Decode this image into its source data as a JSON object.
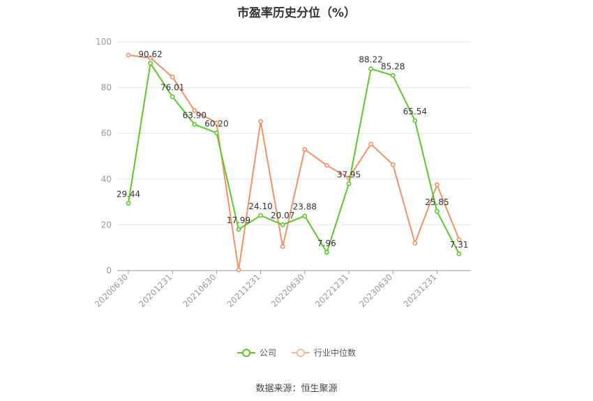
{
  "chart_data": {
    "type": "line",
    "title": "市盈率历史分位（%）",
    "x": [
      "20200630",
      "20200930",
      "20201231",
      "20210331",
      "20210630",
      "20210930",
      "20211231",
      "20220331",
      "20220630",
      "20220930",
      "20221231",
      "20230331",
      "20230630",
      "20230930",
      "20231231",
      "20240331"
    ],
    "x_tick_labels": [
      "20200630",
      "20201231",
      "20210630",
      "20211231",
      "20220630",
      "20221231",
      "20230630",
      "20231231"
    ],
    "y_ticks": [
      0,
      20,
      40,
      60,
      80,
      100
    ],
    "ylim": [
      0,
      100
    ],
    "grid": true,
    "legend_position": "bottom",
    "series": [
      {
        "name": "公司",
        "color": "#5cc72c",
        "values": [
          29.44,
          90.62,
          76.01,
          63.9,
          60.2,
          17.99,
          24.1,
          20.07,
          23.88,
          7.96,
          37.95,
          88.22,
          85.28,
          65.54,
          25.85,
          7.31
        ],
        "labels": [
          "29.44",
          "90.62",
          "76.01",
          "63.90",
          "60.20",
          "17.99",
          "24.10",
          "20.07",
          "23.88",
          "7.96",
          "37.95",
          "88.22",
          "85.28",
          "65.54",
          "25.85",
          "7.31"
        ]
      },
      {
        "name": "行业中位数",
        "color": "#f39066",
        "values": [
          94.2,
          93.0,
          84.6,
          70.0,
          64.5,
          0.3,
          65.2,
          10.5,
          53.0,
          46.0,
          40.5,
          55.3,
          46.3,
          12.0,
          37.5,
          13.5
        ]
      }
    ]
  },
  "source": "数据来源：恒生聚源"
}
